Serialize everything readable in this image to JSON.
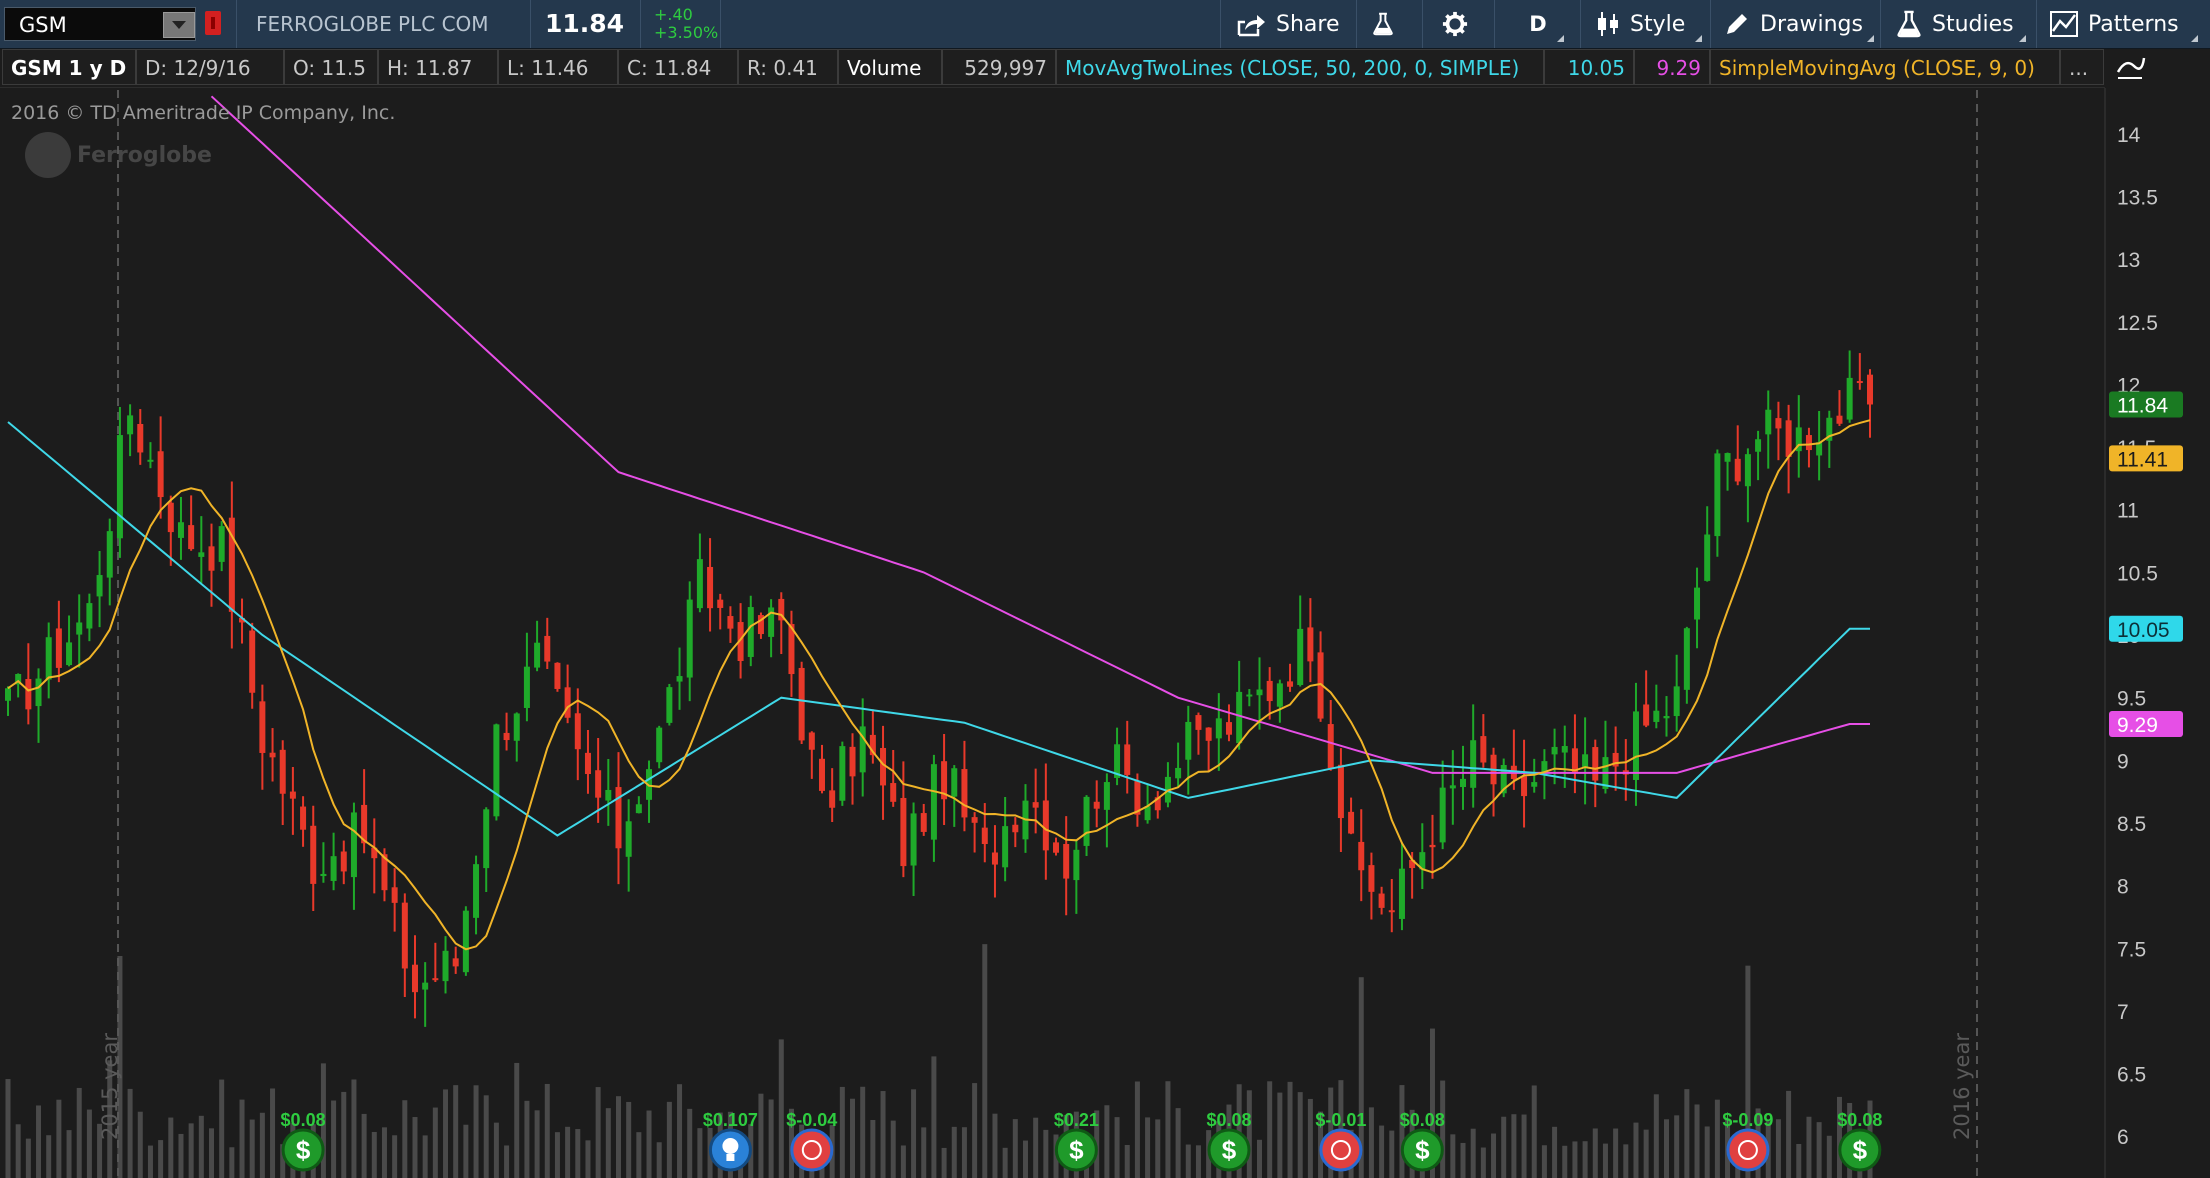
{
  "toolbar": {
    "symbol": "GSM",
    "company": "FERROGLOBE PLC COM",
    "last": "11.84",
    "change": "+.40",
    "change_pct": "+3.50%",
    "share_label": "Share",
    "aggregation": "D",
    "style_label": "Style",
    "drawings_label": "Drawings",
    "studies_label": "Studies",
    "patterns_label": "Patterns"
  },
  "info": {
    "title": "GSM 1 y D",
    "date": "D:  12/9/16",
    "open": "O:  11.5",
    "high": "H:  11.87",
    "low": "L:  11.46",
    "close": "C:  11.84",
    "range": "R:  0.41",
    "volume_label": "Volume",
    "volume_value": "529,997",
    "ma2_label": "MovAvgTwoLines (CLOSE, 50, 200, 0, SIMPLE)",
    "ma50_value": "10.05",
    "ma200_value": "9.29",
    "sma_label": "SimpleMovingAvg (CLOSE, 9, 0)",
    "more": "..."
  },
  "watermark": {
    "copyright": "2016 © TD Ameritrade IP Company, Inc.",
    "logo": "Ferroglobe",
    "year_2015": "2015 year",
    "year_2016": "2016 year"
  },
  "chart_data": {
    "type": "candlestick",
    "ylim": [
      5.85,
      14.35
    ],
    "yticks": [
      14,
      13.5,
      13,
      12.5,
      12,
      11.5,
      11,
      10.5,
      10,
      9.5,
      9,
      8.5,
      8,
      7.5,
      7,
      6.5,
      6
    ],
    "price_badges": [
      {
        "value": "11.84",
        "bg": "#1a7a22",
        "fg": "#ffffff"
      },
      {
        "value": "11.41",
        "bg": "#f0b428",
        "fg": "#1c1c1c"
      },
      {
        "value": "10.05",
        "bg": "#2fd8ea",
        "fg": "#0c3038"
      },
      {
        "value": "9.29",
        "bg": "#e64fe6",
        "fg": "#ffffff"
      }
    ],
    "colors": {
      "up": "#1faa2a",
      "down": "#e8392a",
      "ma50": "#3fd8e8",
      "ma200": "#e64fe6",
      "sma9": "#f0b428",
      "volume": "#5a5a5a"
    },
    "close_anchors": [
      [
        0,
        9.4
      ],
      [
        8,
        10.2
      ],
      [
        12,
        11.8
      ],
      [
        17,
        10.8
      ],
      [
        21,
        10.7
      ],
      [
        25,
        9.2
      ],
      [
        30,
        8.2
      ],
      [
        35,
        8.4
      ],
      [
        40,
        7.2
      ],
      [
        44,
        7.4
      ],
      [
        48,
        9.2
      ],
      [
        52,
        9.8
      ],
      [
        56,
        9.0
      ],
      [
        60,
        8.4
      ],
      [
        64,
        9.2
      ],
      [
        68,
        10.4
      ],
      [
        72,
        10.0
      ],
      [
        76,
        10.1
      ],
      [
        80,
        8.6
      ],
      [
        84,
        9.2
      ],
      [
        88,
        8.3
      ],
      [
        92,
        8.9
      ],
      [
        96,
        8.2
      ],
      [
        100,
        8.8
      ],
      [
        104,
        8.2
      ],
      [
        108,
        9.0
      ],
      [
        112,
        8.7
      ],
      [
        116,
        9.1
      ],
      [
        120,
        9.3
      ],
      [
        124,
        9.6
      ],
      [
        128,
        10.0
      ],
      [
        132,
        8.2
      ],
      [
        136,
        7.8
      ],
      [
        140,
        8.5
      ],
      [
        144,
        9.0
      ],
      [
        148,
        8.7
      ],
      [
        152,
        9.0
      ],
      [
        156,
        8.8
      ],
      [
        160,
        9.2
      ],
      [
        164,
        9.5
      ],
      [
        168,
        11.3
      ],
      [
        172,
        11.6
      ],
      [
        176,
        11.6
      ],
      [
        181,
        11.84
      ]
    ],
    "ma50_anchors": [
      [
        0,
        11.7
      ],
      [
        25,
        10.0
      ],
      [
        54,
        8.4
      ],
      [
        76,
        9.5
      ],
      [
        94,
        9.3
      ],
      [
        116,
        8.7
      ],
      [
        134,
        9.0
      ],
      [
        150,
        8.9
      ],
      [
        164,
        8.7
      ],
      [
        181,
        10.05
      ]
    ],
    "ma200_anchors": [
      [
        20,
        14.3
      ],
      [
        60,
        11.3
      ],
      [
        90,
        10.5
      ],
      [
        115,
        9.5
      ],
      [
        140,
        8.9
      ],
      [
        164,
        8.9
      ],
      [
        181,
        9.29
      ]
    ],
    "dividends": [
      {
        "index": 29,
        "label": "$0.08",
        "kind": "dividend"
      },
      {
        "index": 71,
        "label": "$0.107",
        "kind": "bulb"
      },
      {
        "index": 79,
        "label": "$-0.04",
        "kind": "earnings"
      },
      {
        "index": 105,
        "label": "$0.21",
        "kind": "dividend"
      },
      {
        "index": 120,
        "label": "$0.08",
        "kind": "dividend"
      },
      {
        "index": 131,
        "label": "$-0.01",
        "kind": "earnings"
      },
      {
        "index": 139,
        "label": "$0.08",
        "kind": "dividend"
      },
      {
        "index": 171,
        "label": "$-0.09",
        "kind": "earnings"
      },
      {
        "index": 182,
        "label": "$0.08",
        "kind": "dividend"
      }
    ]
  }
}
